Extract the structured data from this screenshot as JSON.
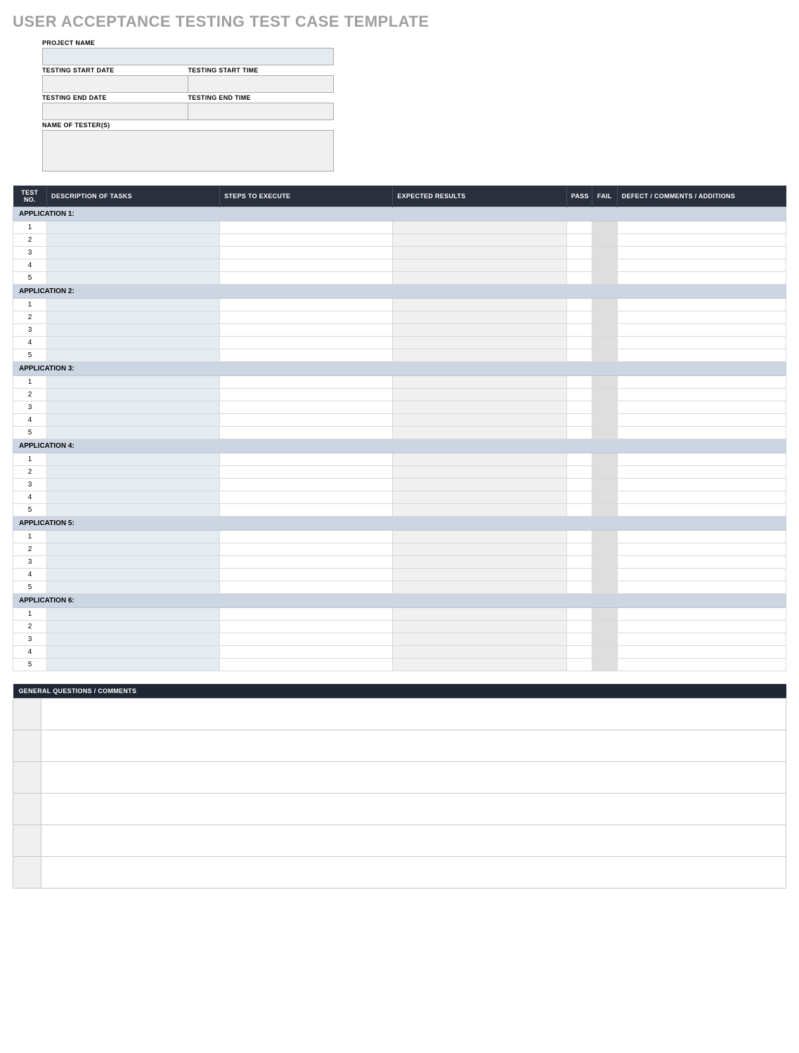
{
  "title": "USER ACCEPTANCE TESTING TEST CASE TEMPLATE",
  "meta": {
    "project_name_label": "PROJECT NAME",
    "project_name_value": "",
    "start_date_label": "TESTING START DATE",
    "start_date_value": "",
    "start_time_label": "TESTING START TIME",
    "start_time_value": "",
    "end_date_label": "TESTING END DATE",
    "end_date_value": "",
    "end_time_label": "TESTING END TIME",
    "end_time_value": "",
    "tester_label": "NAME OF TESTER(S)",
    "tester_value": ""
  },
  "headers": {
    "testno": "TEST NO.",
    "desc": "DESCRIPTION OF TASKS",
    "steps": "STEPS TO EXECUTE",
    "expected": "EXPECTED RESULTS",
    "pass": "PASS",
    "fail": "FAIL",
    "defect": "DEFECT / COMMENTS / ADDITIONS"
  },
  "applications": [
    {
      "label": "APPLICATION 1:",
      "rows": [
        {
          "n": "1"
        },
        {
          "n": "2"
        },
        {
          "n": "3"
        },
        {
          "n": "4"
        },
        {
          "n": "5"
        }
      ]
    },
    {
      "label": "APPLICATION 2:",
      "rows": [
        {
          "n": "1"
        },
        {
          "n": "2"
        },
        {
          "n": "3"
        },
        {
          "n": "4"
        },
        {
          "n": "5"
        }
      ]
    },
    {
      "label": "APPLICATION 3:",
      "rows": [
        {
          "n": "1"
        },
        {
          "n": "2"
        },
        {
          "n": "3"
        },
        {
          "n": "4"
        },
        {
          "n": "5"
        }
      ]
    },
    {
      "label": "APPLICATION 4:",
      "rows": [
        {
          "n": "1"
        },
        {
          "n": "2"
        },
        {
          "n": "3"
        },
        {
          "n": "4"
        },
        {
          "n": "5"
        }
      ]
    },
    {
      "label": "APPLICATION 5:",
      "rows": [
        {
          "n": "1"
        },
        {
          "n": "2"
        },
        {
          "n": "3"
        },
        {
          "n": "4"
        },
        {
          "n": "5"
        }
      ]
    },
    {
      "label": "APPLICATION 6:",
      "rows": [
        {
          "n": "1"
        },
        {
          "n": "2"
        },
        {
          "n": "3"
        },
        {
          "n": "4"
        },
        {
          "n": "5"
        }
      ]
    }
  ],
  "gq": {
    "header": "GENERAL QUESTIONS / COMMENTS",
    "rows": 6
  },
  "colors": {
    "title": "#9e9e9e",
    "header_bg": "#2a2f3d",
    "header_bg_dark": "#1f2735",
    "app_row": "#ccd5e2",
    "desc_cell": "#e5ecf1",
    "expected_cell": "#f0f0f0",
    "fail_cell": "#dedede",
    "border": "#d8d8d8"
  },
  "column_widths": {
    "testno": 40,
    "desc": 205,
    "steps": 205,
    "expected": 206,
    "pass": 30,
    "fail": 30,
    "defect": 200
  }
}
